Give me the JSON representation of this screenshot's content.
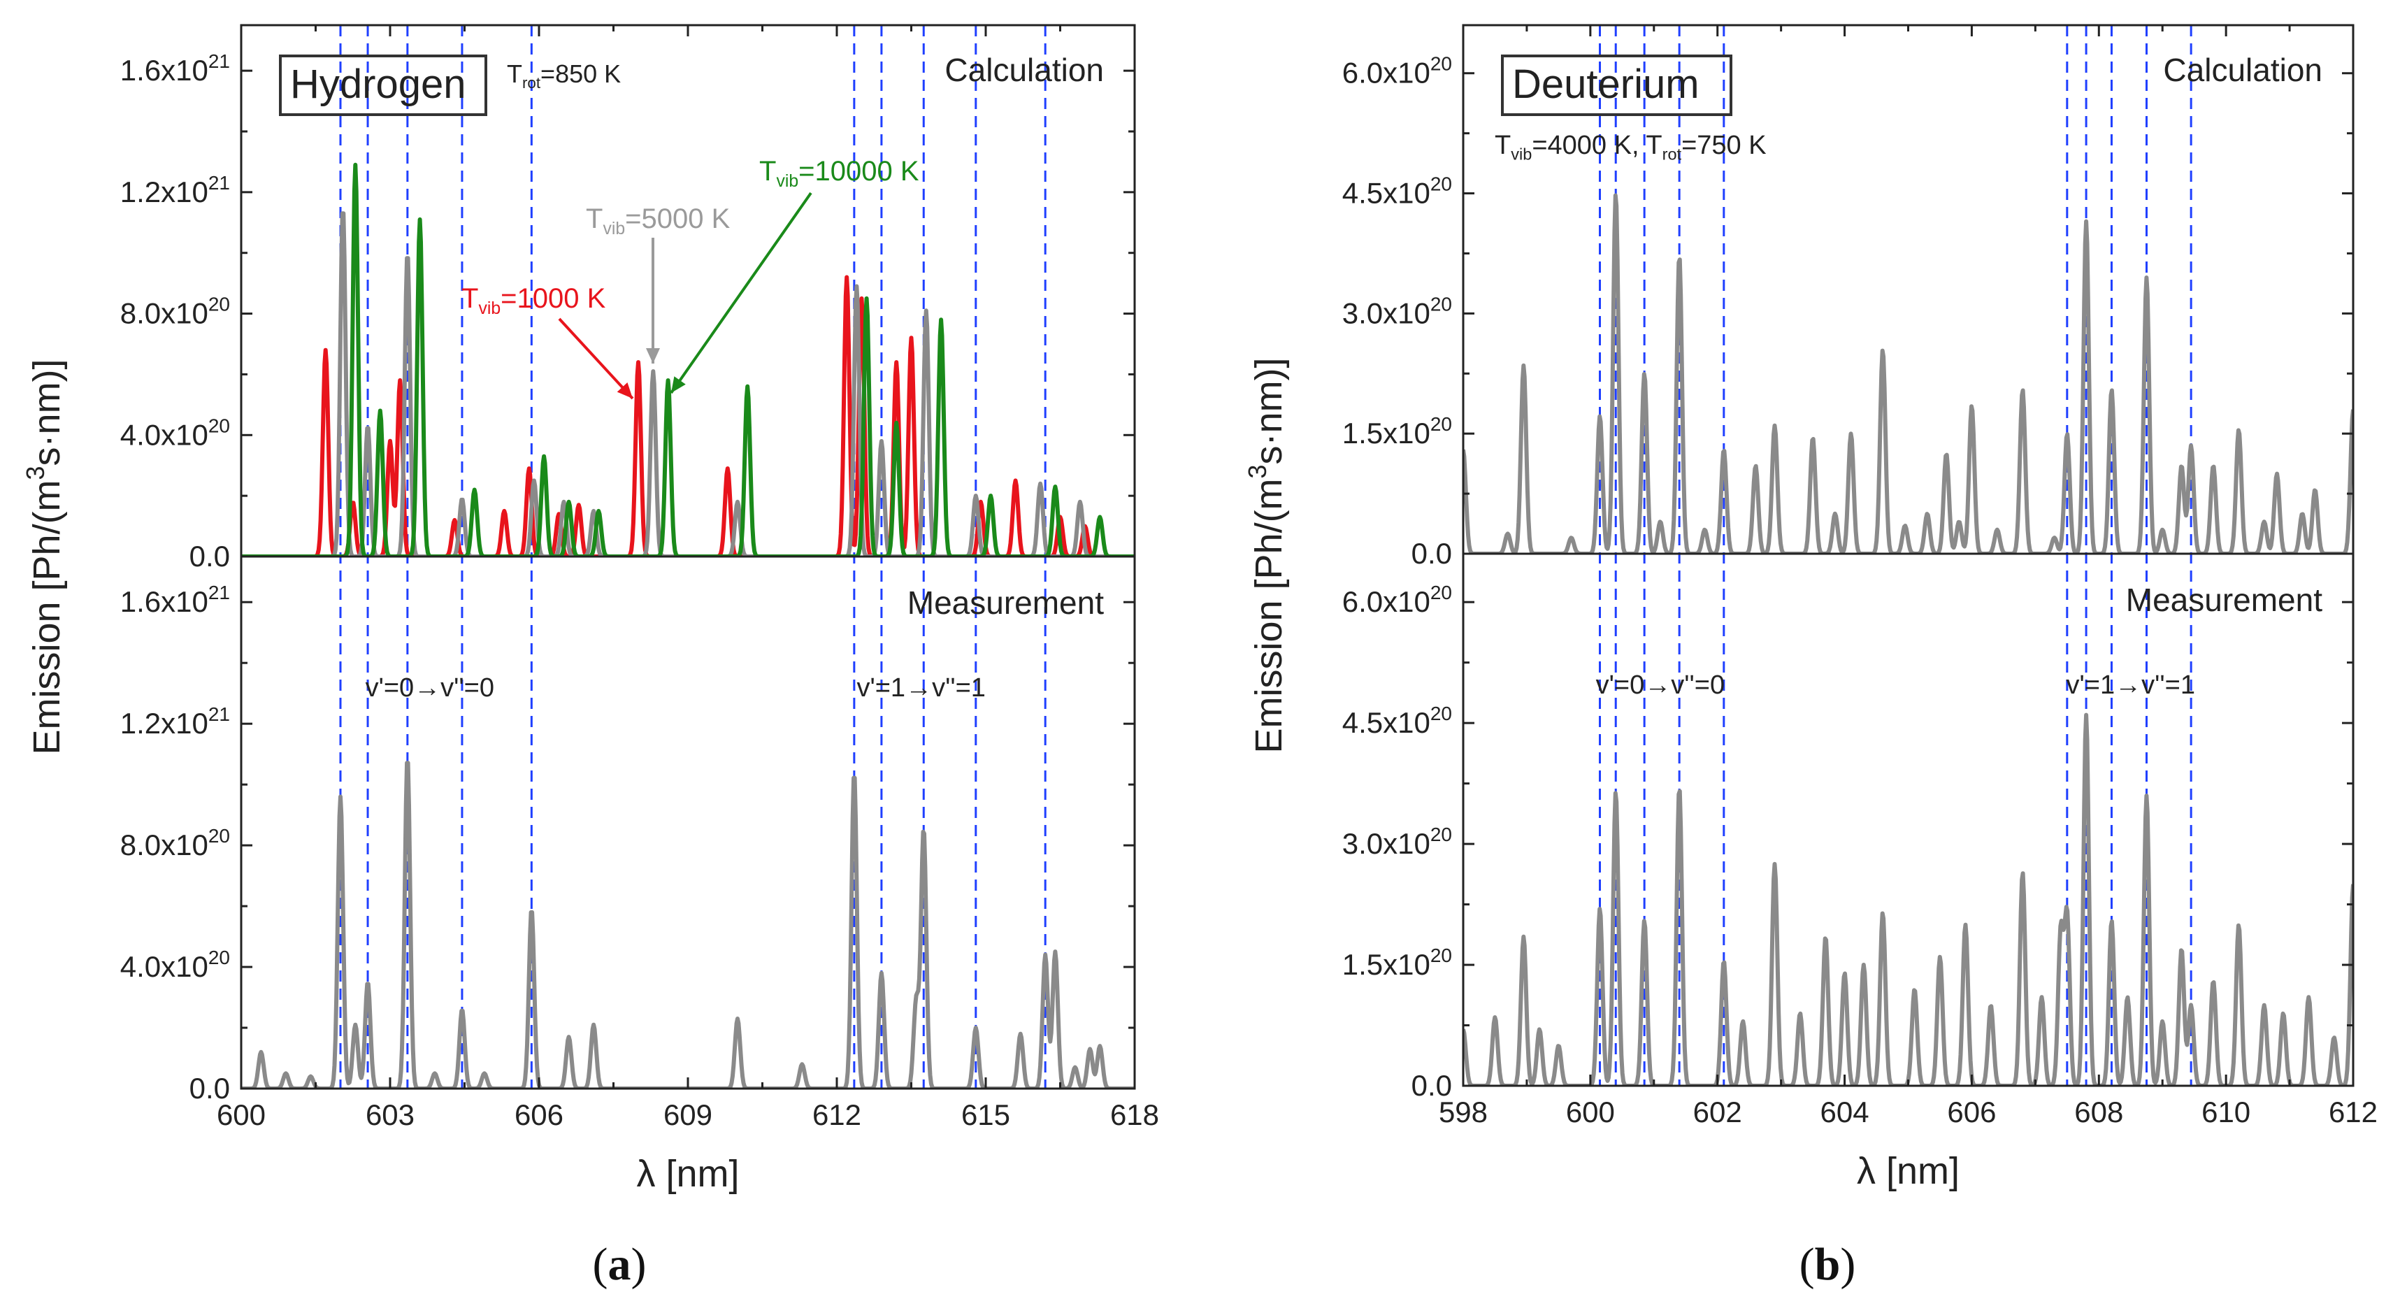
{
  "chart_data": [
    {
      "id": "a",
      "type": "line",
      "panel_label": "a",
      "box_label": "Hydrogen",
      "title_top": "Calculation",
      "title_bottom": "Measurement",
      "ylabel_main": "Emission [Ph/(m",
      "ylabel_sup": "3",
      "ylabel_tail": "s·nm)]",
      "xlabel": "λ [nm]",
      "xlim": [
        600,
        618
      ],
      "xticks": [
        600,
        603,
        606,
        609,
        612,
        615,
        618
      ],
      "ylim": [
        0,
        1.75e+21
      ],
      "yticks": [
        {
          "value": 0,
          "m": "0.0",
          "e": ""
        },
        {
          "value": 4e+20,
          "m": "4.0x10",
          "e": "20"
        },
        {
          "value": 8e+20,
          "m": "8.0x10",
          "e": "20"
        },
        {
          "value": 1.2e+21,
          "m": "1.2x10",
          "e": "21"
        },
        {
          "value": 1.6e+21,
          "m": "1.6x10",
          "e": "21"
        }
      ],
      "dashed_lines": [
        602.0,
        602.55,
        603.35,
        604.45,
        605.85,
        612.35,
        612.9,
        613.75,
        614.8,
        616.2
      ],
      "band_labels": [
        {
          "text": "v'=0→v''=0",
          "x": 603.8
        },
        {
          "text": "v'=1→v''=1",
          "x": 613.7
        }
      ],
      "annotations": [
        {
          "main": "T",
          "sub": "rot",
          "tail": "=850 K",
          "color": "#222222"
        },
        {
          "main": "T",
          "sub": "vib",
          "tail": "=1000 K",
          "color": "#e8141c"
        },
        {
          "main": "T",
          "sub": "vib",
          "tail": "=5000 K",
          "color": "#9a9a9a"
        },
        {
          "main": "T",
          "sub": "vib",
          "tail": "=10000 K",
          "color": "#1a8a1a"
        }
      ],
      "calc_series": [
        {
          "name": "Tvib=1000 K",
          "color": "#e8141c",
          "peaks": [
            [
              601.7,
              6.8e+20
            ],
            [
              602.25,
              1.8e+20
            ],
            [
              603.0,
              3.8e+20
            ],
            [
              603.2,
              5.8e+20
            ],
            [
              604.3,
              1.2e+20
            ],
            [
              605.3,
              1.5e+20
            ],
            [
              605.8,
              2.9e+20
            ],
            [
              606.4,
              1.4e+20
            ],
            [
              606.8,
              1.7e+20
            ],
            [
              608.0,
              6.4e+20
            ],
            [
              609.8,
              2.9e+20
            ],
            [
              612.2,
              9.2e+20
            ],
            [
              612.5,
              8.5e+20
            ],
            [
              613.2,
              6.4e+20
            ],
            [
              613.5,
              7.2e+20
            ],
            [
              614.9,
              1.8e+20
            ],
            [
              615.6,
              2.5e+20
            ],
            [
              616.5,
              1.3e+20
            ],
            [
              617.0,
              1e+20
            ]
          ]
        },
        {
          "name": "Tvib=5000 K",
          "color": "#8a8a8a",
          "peaks": [
            [
              602.05,
              1.15e+21
            ],
            [
              602.55,
              4.3e+20
            ],
            [
              603.35,
              1e+21
            ],
            [
              604.45,
              1.9e+20
            ],
            [
              605.9,
              2.5e+20
            ],
            [
              606.5,
              1.8e+20
            ],
            [
              607.1,
              1.5e+20
            ],
            [
              608.3,
              6.1e+20
            ],
            [
              610.0,
              1.8e+20
            ],
            [
              612.4,
              8.9e+20
            ],
            [
              612.9,
              3.8e+20
            ],
            [
              613.8,
              8.1e+20
            ],
            [
              614.8,
              2e+20
            ],
            [
              616.1,
              2.4e+20
            ],
            [
              616.9,
              1.8e+20
            ]
          ]
        },
        {
          "name": "Tvib=10000 K",
          "color": "#1a8a1a",
          "peaks": [
            [
              602.3,
              1.29e+21
            ],
            [
              602.8,
              4.8e+20
            ],
            [
              603.6,
              1.11e+21
            ],
            [
              604.7,
              2.2e+20
            ],
            [
              606.1,
              3.3e+20
            ],
            [
              606.6,
              1.8e+20
            ],
            [
              607.2,
              1.5e+20
            ],
            [
              608.6,
              5.8e+20
            ],
            [
              610.2,
              5.6e+20
            ],
            [
              612.6,
              8.5e+20
            ],
            [
              613.2,
              4.4e+20
            ],
            [
              614.1,
              7.8e+20
            ],
            [
              615.1,
              2e+20
            ],
            [
              616.4,
              2.3e+20
            ],
            [
              617.3,
              1.3e+20
            ]
          ]
        }
      ],
      "meas_series": {
        "name": "Measurement",
        "color": "#8a8a8a",
        "peaks": [
          [
            600.4,
            1.2e+20
          ],
          [
            600.9,
            5e+19
          ],
          [
            601.4,
            4e+19
          ],
          [
            602.0,
            9.6e+20
          ],
          [
            602.3,
            2.1e+20
          ],
          [
            602.55,
            3.5e+20
          ],
          [
            603.35,
            1.09e+21
          ],
          [
            603.9,
            5e+19
          ],
          [
            604.45,
            2.6e+20
          ],
          [
            604.9,
            5e+19
          ],
          [
            605.85,
            5.9e+20
          ],
          [
            606.6,
            1.7e+20
          ],
          [
            607.1,
            2.1e+20
          ],
          [
            610.0,
            2.3e+20
          ],
          [
            611.3,
            8e+19
          ],
          [
            612.35,
            1.04e+21
          ],
          [
            612.9,
            3.8e+20
          ],
          [
            613.6,
            2.9e+20
          ],
          [
            613.75,
            8.5e+20
          ],
          [
            614.8,
            2e+20
          ],
          [
            615.7,
            1.8e+20
          ],
          [
            616.2,
            4.4e+20
          ],
          [
            616.4,
            4.5e+20
          ],
          [
            616.8,
            7e+19
          ],
          [
            617.1,
            1.3e+20
          ],
          [
            617.3,
            1.4e+20
          ]
        ]
      }
    },
    {
      "id": "b",
      "type": "line",
      "panel_label": "b",
      "box_label": "Deuterium",
      "title_top": "Calculation",
      "title_bottom": "Measurement",
      "ylabel_main": "Emission [Ph/(m",
      "ylabel_sup": "3",
      "ylabel_tail": "s·nm)]",
      "xlabel": "λ [nm]",
      "xlim": [
        598,
        612
      ],
      "xticks": [
        598,
        600,
        602,
        604,
        606,
        608,
        610,
        612
      ],
      "ylim": [
        0,
        6.6e+20
      ],
      "yticks": [
        {
          "value": 0,
          "m": "0.0",
          "e": ""
        },
        {
          "value": 1.5e+20,
          "m": "1.5x10",
          "e": "20"
        },
        {
          "value": 3e+20,
          "m": "3.0x10",
          "e": "20"
        },
        {
          "value": 4.5e+20,
          "m": "4.5x10",
          "e": "20"
        },
        {
          "value": 6e+20,
          "m": "6.0x10",
          "e": "20"
        }
      ],
      "dashed_lines": [
        600.15,
        600.4,
        600.85,
        601.4,
        602.1,
        607.5,
        607.8,
        608.2,
        608.75,
        609.45
      ],
      "band_labels": [
        {
          "text": "v'=0→v''=0",
          "x": 601.1
        },
        {
          "text": "v'=1→v''=1",
          "x": 608.5
        }
      ],
      "annotations": [
        {
          "main": "T",
          "sub": "vib",
          "tail": "=4000 K, ",
          "main2": "T",
          "sub2": "rot",
          "tail2": "=750 K",
          "color": "#222222"
        }
      ],
      "calc_series": [
        {
          "name": "Calculation",
          "color": "#8a8a8a",
          "peaks": [
            [
              598.0,
              1.3e+20
            ],
            [
              598.7,
              2.5e+19
            ],
            [
              598.95,
              2.35e+20
            ],
            [
              599.7,
              2e+19
            ],
            [
              600.15,
              1.72e+20
            ],
            [
              600.4,
              4.5e+20
            ],
            [
              600.85,
              2.25e+20
            ],
            [
              601.1,
              4e+19
            ],
            [
              601.4,
              3.72e+20
            ],
            [
              601.8,
              3e+19
            ],
            [
              602.1,
              1.3e+20
            ],
            [
              602.6,
              1.1e+20
            ],
            [
              602.9,
              1.6e+20
            ],
            [
              603.5,
              1.45e+20
            ],
            [
              603.85,
              5e+19
            ],
            [
              604.1,
              1.5e+20
            ],
            [
              604.6,
              2.55e+20
            ],
            [
              604.95,
              3.5e+19
            ],
            [
              605.3,
              5e+19
            ],
            [
              605.6,
              1.25e+20
            ],
            [
              605.8,
              4e+19
            ],
            [
              606.0,
              1.85e+20
            ],
            [
              606.4,
              3e+19
            ],
            [
              606.8,
              2.05e+20
            ],
            [
              607.3,
              2e+19
            ],
            [
              607.5,
              1.5e+20
            ],
            [
              607.8,
              4.15e+20
            ],
            [
              608.2,
              2.05e+20
            ],
            [
              608.75,
              3.45e+20
            ],
            [
              609.0,
              3e+19
            ],
            [
              609.3,
              1.1e+20
            ],
            [
              609.45,
              1.35e+20
            ],
            [
              609.8,
              1.1e+20
            ],
            [
              610.2,
              1.55e+20
            ],
            [
              610.6,
              4e+19
            ],
            [
              610.8,
              1e+20
            ],
            [
              611.2,
              5e+19
            ],
            [
              611.4,
              8e+19
            ],
            [
              612.0,
              1.8e+20
            ]
          ]
        }
      ],
      "meas_series": {
        "name": "Measurement",
        "color": "#8a8a8a",
        "peaks": [
          [
            598.0,
            7e+19
          ],
          [
            598.5,
            8.5e+19
          ],
          [
            598.95,
            1.85e+20
          ],
          [
            599.2,
            7e+19
          ],
          [
            599.5,
            5e+19
          ],
          [
            600.15,
            2.2e+20
          ],
          [
            600.4,
            3.65e+20
          ],
          [
            600.85,
            2.05e+20
          ],
          [
            601.4,
            3.7e+20
          ],
          [
            602.1,
            1.55e+20
          ],
          [
            602.4,
            8e+19
          ],
          [
            602.9,
            2.75e+20
          ],
          [
            603.3,
            9e+19
          ],
          [
            603.7,
            1.85e+20
          ],
          [
            604.0,
            1.4e+20
          ],
          [
            604.3,
            1.5e+20
          ],
          [
            604.6,
            2.15e+20
          ],
          [
            605.1,
            1.2e+20
          ],
          [
            605.5,
            1.6e+20
          ],
          [
            605.9,
            2e+20
          ],
          [
            606.3,
            1e+20
          ],
          [
            606.8,
            2.65e+20
          ],
          [
            607.1,
            1.1e+20
          ],
          [
            607.4,
            1.9e+20
          ],
          [
            607.5,
            2.1e+20
          ],
          [
            607.8,
            4.6e+20
          ],
          [
            608.2,
            2.05e+20
          ],
          [
            608.45,
            1.1e+20
          ],
          [
            608.75,
            3.6e+20
          ],
          [
            609.0,
            8e+19
          ],
          [
            609.3,
            1.7e+20
          ],
          [
            609.45,
            1e+20
          ],
          [
            609.8,
            1.3e+20
          ],
          [
            610.2,
            2e+20
          ],
          [
            610.6,
            1e+20
          ],
          [
            610.9,
            9e+19
          ],
          [
            611.3,
            1.1e+20
          ],
          [
            611.7,
            6e+19
          ],
          [
            612.0,
            2.5e+20
          ]
        ]
      }
    }
  ]
}
